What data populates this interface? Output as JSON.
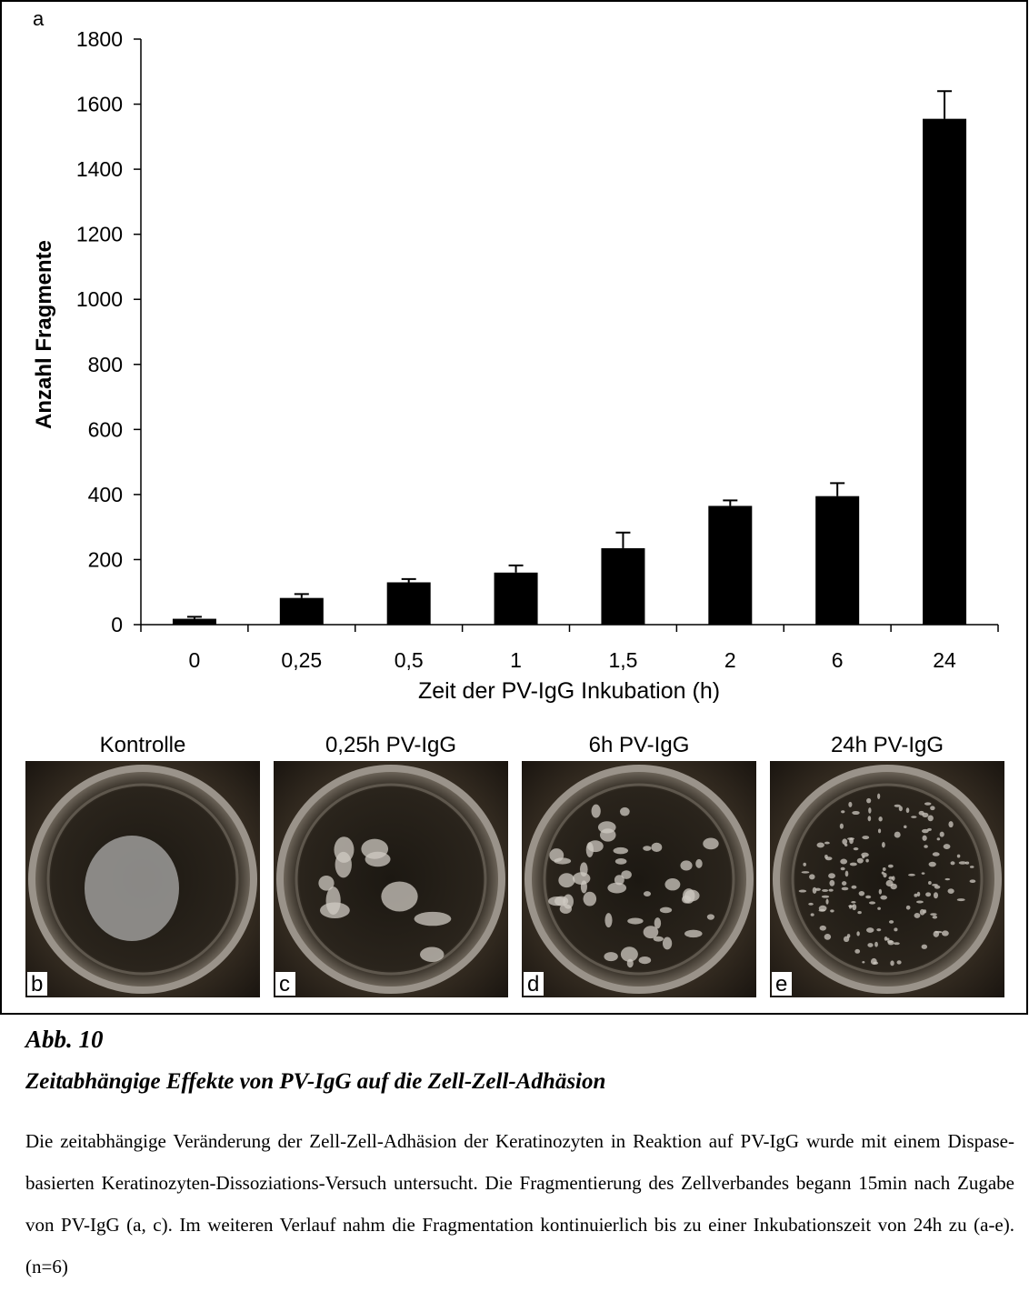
{
  "chart_data": {
    "type": "bar",
    "panel_label": "a",
    "x_label": "Zeit der PV-IgG Inkubation (h)",
    "y_label": "Anzahl Fragmente",
    "categories": [
      "0",
      "0,25",
      "0,5",
      "1",
      "1,5",
      "2",
      "6",
      "24"
    ],
    "values": [
      18,
      82,
      130,
      160,
      235,
      365,
      395,
      1555
    ],
    "errors": [
      6,
      12,
      10,
      22,
      48,
      17,
      40,
      85
    ],
    "color": "#000000",
    "ylim": [
      0,
      1800
    ],
    "yticks": [
      0,
      200,
      400,
      600,
      800,
      1000,
      1200,
      1400,
      1600,
      1800
    ],
    "grid": false
  },
  "panels": [
    {
      "title": "Kontrolle",
      "label": "b"
    },
    {
      "title": "0,25h PV-IgG",
      "label": "c"
    },
    {
      "title": "6h PV-IgG",
      "label": "d"
    },
    {
      "title": "24h PV-IgG",
      "label": "e"
    }
  ],
  "caption": {
    "label": "Abb. 10",
    "title": "Zeitabhängige Effekte von PV-IgG auf die Zell-Zell-Adhäsion",
    "text": "Die zeitabhängige Veränderung der Zell-Zell-Adhäsion der Keratinozyten in Reaktion auf PV-IgG wurde mit einem Dispase-basierten Keratinozyten-Dissoziations-Versuch untersucht. Die Fragmentierung des Zellverbandes begann 15min nach Zugabe von PV-IgG (a, c). Im weiteren Verlauf nahm die Fragmentation kontinuierlich bis zu einer Inkubationszeit von 24h zu (a-e). (n=6)"
  }
}
